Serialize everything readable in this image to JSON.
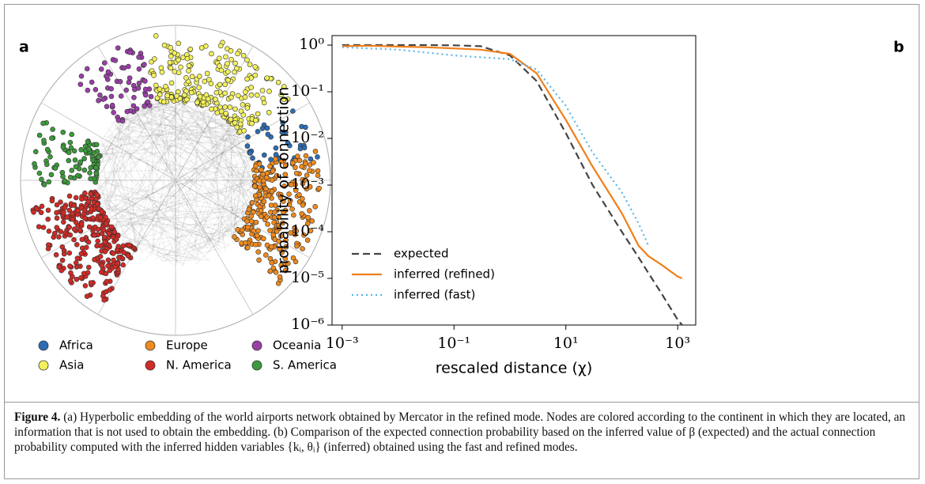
{
  "panel_a": {
    "label": "a",
    "legend": [
      {
        "name": "Africa",
        "color": "#2e6db4"
      },
      {
        "name": "Europe",
        "color": "#ef8a1d"
      },
      {
        "name": "Oceania",
        "color": "#9a3fa7"
      },
      {
        "name": "Asia",
        "color": "#f3f15c"
      },
      {
        "name": "N. America",
        "color": "#d22a25"
      },
      {
        "name": "S. America",
        "color": "#3b9a3b"
      }
    ]
  },
  "chart_data": {
    "type": "line",
    "label": "b",
    "xlabel": "rescaled distance (χ)",
    "ylabel": "probability of connection",
    "xscale": "log",
    "yscale": "log",
    "xlim": [
      0.00066,
      2100
    ],
    "ylim": [
      1e-06,
      1.6
    ],
    "xticks": [
      {
        "value": 0.001,
        "label": "10⁻³"
      },
      {
        "value": 0.1,
        "label": "10⁻¹"
      },
      {
        "value": 10,
        "label": "10¹"
      },
      {
        "value": 1000,
        "label": "10³"
      }
    ],
    "yticks": [
      {
        "value": 1,
        "label": "10⁰"
      },
      {
        "value": 0.1,
        "label": "10⁻¹"
      },
      {
        "value": 0.01,
        "label": "10⁻²"
      },
      {
        "value": 0.001,
        "label": "10⁻³"
      },
      {
        "value": 0.0001,
        "label": "10⁻⁴"
      },
      {
        "value": 1e-05,
        "label": "10⁻⁵"
      },
      {
        "value": 1e-06,
        "label": "10⁻⁶"
      }
    ],
    "x": [
      0.001,
      0.003,
      0.01,
      0.03,
      0.1,
      0.3,
      1,
      3,
      10,
      30,
      100,
      200,
      300,
      500,
      1000,
      1200
    ],
    "series": [
      {
        "name": "expected",
        "color": "#444444",
        "dash": "dashed",
        "values": [
          1,
          1,
          1,
          1,
          0.99,
          0.95,
          0.6,
          0.17,
          0.013,
          0.001,
          0.0001,
          2.8e-05,
          1.3e-05,
          5e-06,
          1.3e-06,
          1e-06
        ]
      },
      {
        "name": "inferred (refined)",
        "color": "#f07f1a",
        "dash": "solid",
        "values": [
          0.95,
          0.97,
          0.93,
          0.9,
          0.85,
          0.8,
          0.65,
          0.25,
          0.025,
          0.0025,
          0.00025,
          5e-05,
          3e-05,
          2e-05,
          1.1e-05,
          1e-05
        ]
      },
      {
        "name": "inferred (fast)",
        "color": "#5ab4e8",
        "dash": "dotted",
        "values": [
          0.9,
          0.85,
          0.8,
          0.7,
          0.6,
          0.55,
          0.5,
          0.3,
          0.05,
          0.005,
          0.0007,
          0.00015,
          5e-05,
          null,
          null,
          null
        ]
      }
    ],
    "legend_position": "lower left"
  },
  "caption": {
    "label": "Figure 4.",
    "text": "(a) Hyperbolic embedding of the world airports network obtained by Mercator in the refined mode. Nodes are colored according to the continent in which they are located, an information that is not used to obtain the embedding. (b) Comparison of the expected connection probability based on the inferred value of β (expected) and the actual connection probability computed with the inferred hidden variables {kᵢ, θᵢ} (inferred) obtained using the fast and refined modes."
  }
}
